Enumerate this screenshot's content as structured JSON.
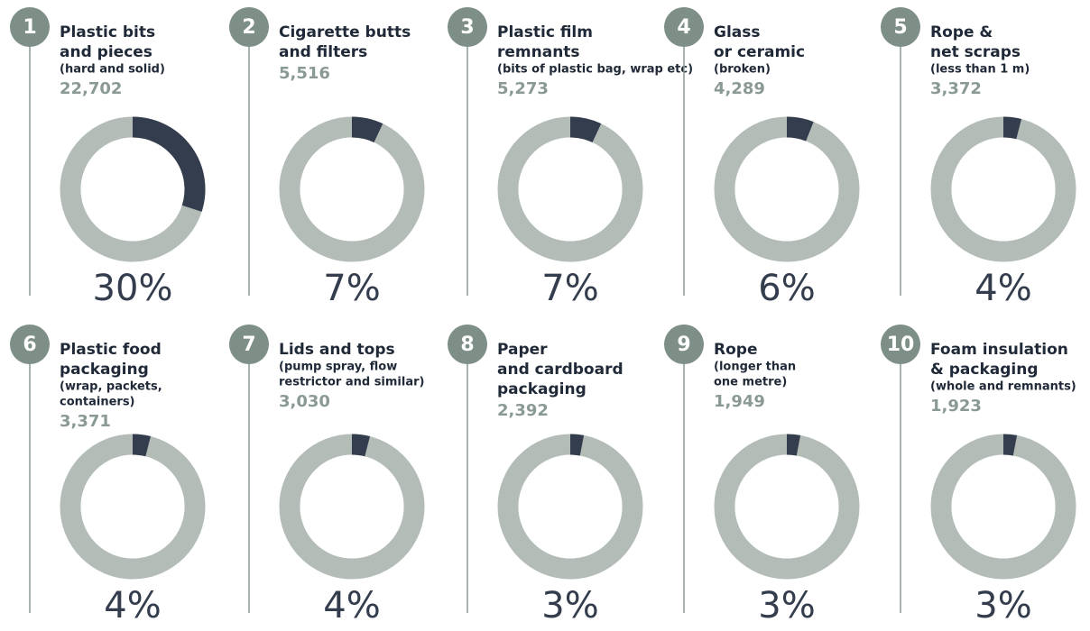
{
  "chart_data": [
    {
      "type": "donut",
      "rank": "1",
      "title": [
        "Plastic bits",
        "and pieces"
      ],
      "subtitle": [
        "(hard and solid)"
      ],
      "count": "22,702",
      "value": 30,
      "value_label": "30%"
    },
    {
      "type": "donut",
      "rank": "2",
      "title": [
        "Cigarette butts",
        "and filters"
      ],
      "subtitle": [],
      "count": "5,516",
      "value": 7,
      "value_label": "7%"
    },
    {
      "type": "donut",
      "rank": "3",
      "title": [
        "Plastic film",
        "remnants"
      ],
      "subtitle": [
        "(bits of plastic bag, wrap etc)"
      ],
      "count": "5,273",
      "value": 7,
      "value_label": "7%"
    },
    {
      "type": "donut",
      "rank": "4",
      "title": [
        "Glass",
        "or ceramic"
      ],
      "subtitle": [
        "(broken)"
      ],
      "count": "4,289",
      "value": 6,
      "value_label": "6%"
    },
    {
      "type": "donut",
      "rank": "5",
      "title": [
        "Rope &",
        "net scraps"
      ],
      "subtitle": [
        "(less than 1 m)"
      ],
      "count": "3,372",
      "value": 4,
      "value_label": "4%"
    },
    {
      "type": "donut",
      "rank": "6",
      "title": [
        "Plastic food",
        "packaging"
      ],
      "subtitle": [
        "(wrap, packets,",
        "containers)"
      ],
      "count": "3,371",
      "value": 4,
      "value_label": "4%"
    },
    {
      "type": "donut",
      "rank": "7",
      "title": [
        "Lids and tops"
      ],
      "subtitle": [
        "(pump spray, flow",
        "restrictor and similar)"
      ],
      "count": "3,030",
      "value": 4,
      "value_label": "4%"
    },
    {
      "type": "donut",
      "rank": "8",
      "title": [
        "Paper",
        "and cardboard",
        "packaging"
      ],
      "subtitle": [],
      "count": "2,392",
      "value": 3,
      "value_label": "3%"
    },
    {
      "type": "donut",
      "rank": "9",
      "title": [
        "Rope"
      ],
      "subtitle": [
        "(longer than",
        "one metre)"
      ],
      "count": "1,949",
      "value": 3,
      "value_label": "3%"
    },
    {
      "type": "donut",
      "rank": "10",
      "title": [
        "Foam insulation",
        "& packaging"
      ],
      "subtitle": [
        "(whole and remnants)"
      ],
      "count": "1,923",
      "value": 3,
      "value_label": "3%"
    }
  ]
}
